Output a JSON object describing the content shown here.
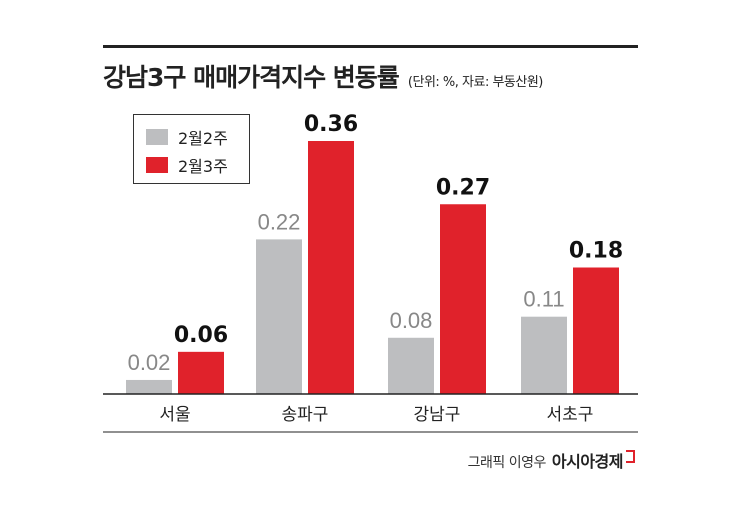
{
  "chart_data": {
    "type": "bar",
    "title": "강남3구 매매가격지수 변동률",
    "subtitle": "(단위: %, 자료: 부동산원)",
    "categories": [
      "서울",
      "송파구",
      "강남구",
      "서초구"
    ],
    "series": [
      {
        "name": "2월2주",
        "values": [
          0.02,
          0.22,
          0.08,
          0.11
        ],
        "labels": [
          "0.02",
          "0.22",
          "0.08",
          "0.11"
        ],
        "color": "#bdbec0"
      },
      {
        "name": "2월3주",
        "values": [
          0.06,
          0.36,
          0.27,
          0.18
        ],
        "labels": [
          "0.06",
          "0.36",
          "0.27",
          "0.18"
        ],
        "color": "#e0222b"
      }
    ],
    "ylim": [
      0,
      0.4
    ],
    "grid": false,
    "legend": "top-left"
  },
  "footer": {
    "credit": "그래픽 이영우",
    "brand": "아시아경제"
  }
}
